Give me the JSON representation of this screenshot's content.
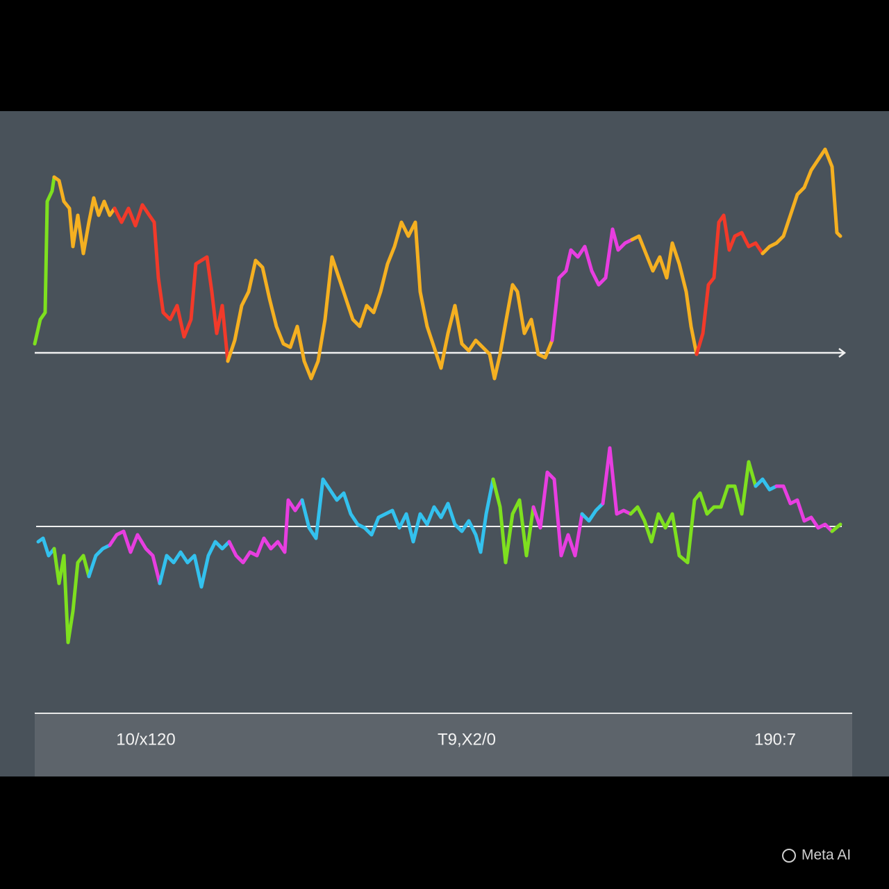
{
  "chart_data": [
    {
      "type": "line",
      "xlim": [
        0,
        1160
      ],
      "ylim": [
        -52,
        308
      ],
      "series": [
        {
          "color": "#7ee01f",
          "x": [
            0,
            8,
            15,
            18,
            25,
            28
          ],
          "values": [
            13,
            48,
            58,
            218,
            233,
            253
          ]
        },
        {
          "color": "#f5b021",
          "x": [
            28,
            35,
            42,
            50,
            55,
            62,
            70,
            78,
            85,
            92,
            100,
            108,
            115
          ],
          "values": [
            253,
            248,
            218,
            208,
            153,
            198,
            143,
            188,
            223,
            198,
            218,
            198,
            208
          ]
        },
        {
          "color": "#f23a2a",
          "x": [
            115,
            125,
            135,
            145,
            155,
            165,
            172,
            178,
            185,
            195,
            205,
            215,
            225,
            232,
            240,
            248,
            255,
            262,
            270,
            278
          ],
          "values": [
            208,
            188,
            208,
            183,
            213,
            198,
            188,
            108,
            58,
            48,
            68,
            23,
            48,
            128,
            133,
            138,
            88,
            28,
            68,
            -12
          ]
        },
        {
          "color": "#f5b021",
          "x": [
            278,
            288,
            298,
            308,
            318,
            328,
            338,
            348,
            358,
            368,
            378,
            388,
            398,
            408,
            418,
            428,
            438,
            448,
            458,
            468,
            478,
            488,
            498,
            508,
            518,
            528,
            538,
            548,
            555,
            565,
            575,
            585,
            595,
            605,
            615,
            625,
            635,
            645,
            655,
            662,
            670,
            678,
            688,
            695,
            705,
            715,
            725,
            735,
            745
          ],
          "values": [
            -12,
            18,
            68,
            88,
            133,
            123,
            78,
            38,
            13,
            8,
            38,
            -12,
            -37,
            -12,
            48,
            138,
            108,
            78,
            48,
            38,
            68,
            58,
            88,
            128,
            153,
            188,
            168,
            188,
            88,
            38,
            8,
            -22,
            28,
            68,
            13,
            3,
            18,
            8,
            -2,
            -37,
            -2,
            43,
            98,
            88,
            28,
            48,
            -2,
            -7,
            18
          ]
        },
        {
          "color": "#e83ee0",
          "x": [
            745,
            755,
            765,
            772,
            782,
            792,
            802,
            812,
            822,
            832,
            840,
            850,
            860
          ],
          "values": [
            18,
            108,
            118,
            148,
            138,
            153,
            118,
            98,
            108,
            178,
            148,
            158,
            163
          ]
        },
        {
          "color": "#f5b021",
          "x": [
            860,
            870,
            880,
            890,
            900,
            910,
            918,
            928,
            938,
            945,
            953
          ],
          "values": [
            163,
            168,
            143,
            118,
            138,
            108,
            158,
            128,
            88,
            38,
            -2
          ]
        },
        {
          "color": "#f23a2a",
          "x": [
            953,
            962,
            970,
            978,
            985,
            992,
            1000,
            1008,
            1018,
            1028,
            1038,
            1048
          ],
          "values": [
            -2,
            28,
            98,
            108,
            188,
            198,
            148,
            168,
            173,
            153,
            158,
            143
          ]
        },
        {
          "color": "#f5b021",
          "x": [
            1048,
            1058,
            1068,
            1078,
            1088,
            1098,
            1108,
            1118,
            1128,
            1138,
            1148,
            1155,
            1160
          ],
          "values": [
            143,
            153,
            158,
            168,
            198,
            228,
            238,
            263,
            278,
            293,
            268,
            173,
            168
          ]
        }
      ]
    },
    {
      "type": "line",
      "xlim": [
        0,
        1160
      ],
      "ylim": [
        -182,
        128
      ],
      "series": [
        {
          "color": "#33c1ee",
          "x": [
            5,
            12,
            20,
            28
          ],
          "values": [
            -22,
            -17,
            -42,
            -32
          ]
        },
        {
          "color": "#7ee01f",
          "x": [
            28,
            35,
            42,
            48,
            55,
            62,
            70,
            78
          ],
          "values": [
            -32,
            -82,
            -42,
            -167,
            -122,
            -52,
            -42,
            -72
          ]
        },
        {
          "color": "#33c1ee",
          "x": [
            78,
            88,
            98,
            108
          ],
          "values": [
            -72,
            -42,
            -32,
            -27
          ]
        },
        {
          "color": "#e83ee0",
          "x": [
            108,
            118,
            128,
            138,
            148,
            160,
            170,
            180
          ],
          "values": [
            -27,
            -12,
            -7,
            -37,
            -12,
            -32,
            -42,
            -82
          ]
        },
        {
          "color": "#33c1ee",
          "x": [
            180,
            190,
            200,
            210,
            220,
            230,
            240,
            250,
            260,
            270,
            280
          ],
          "values": [
            -82,
            -42,
            -52,
            -37,
            -52,
            -42,
            -87,
            -42,
            -22,
            -32,
            -22
          ]
        },
        {
          "color": "#e83ee0",
          "x": [
            280,
            290,
            300,
            310,
            320,
            330,
            340,
            350,
            360,
            365,
            375,
            385
          ],
          "values": [
            -22,
            -42,
            -52,
            -37,
            -42,
            -17,
            -32,
            -22,
            -37,
            38,
            23,
            38
          ]
        },
        {
          "color": "#33c1ee",
          "x": [
            385,
            395,
            405,
            415,
            425,
            435,
            445,
            455,
            465,
            475,
            485,
            495,
            505,
            515,
            525,
            535,
            545,
            555,
            565,
            575,
            585,
            595,
            605,
            615,
            625,
            635,
            642,
            650,
            660
          ],
          "values": [
            38,
            -2,
            -17,
            68,
            53,
            38,
            48,
            18,
            3,
            -2,
            -12,
            13,
            18,
            23,
            -2,
            18,
            -22,
            18,
            3,
            28,
            13,
            33,
            3,
            -7,
            8,
            -12,
            -37,
            18,
            68
          ]
        },
        {
          "color": "#7ee01f",
          "x": [
            660,
            670,
            678,
            688,
            698,
            708,
            718
          ],
          "values": [
            68,
            28,
            -52,
            18,
            38,
            -42,
            28
          ]
        },
        {
          "color": "#e83ee0",
          "x": [
            718,
            728,
            738,
            748,
            758,
            768,
            778,
            788
          ],
          "values": [
            28,
            -2,
            78,
            68,
            -42,
            -12,
            -42,
            18
          ]
        },
        {
          "color": "#33c1ee",
          "x": [
            788,
            798,
            808,
            818
          ],
          "values": [
            18,
            8,
            23,
            33
          ]
        },
        {
          "color": "#e83ee0",
          "x": [
            818,
            828,
            838,
            848,
            858
          ],
          "values": [
            33,
            113,
            18,
            23,
            18
          ]
        },
        {
          "color": "#7ee01f",
          "x": [
            858,
            868,
            878,
            888,
            898,
            908,
            918,
            928,
            940,
            950,
            958,
            968,
            978,
            988,
            998,
            1008,
            1018,
            1028,
            1038
          ],
          "values": [
            18,
            28,
            8,
            -22,
            18,
            -2,
            18,
            -42,
            -52,
            38,
            48,
            18,
            28,
            28,
            58,
            58,
            18,
            93,
            58
          ]
        },
        {
          "color": "#33c1ee",
          "x": [
            1038,
            1048,
            1058,
            1068
          ],
          "values": [
            58,
            68,
            53,
            58
          ]
        },
        {
          "color": "#e83ee0",
          "x": [
            1068,
            1078,
            1088,
            1098,
            1108,
            1118,
            1128,
            1138,
            1148
          ],
          "values": [
            58,
            58,
            33,
            38,
            8,
            13,
            -2,
            3,
            -7
          ]
        },
        {
          "color": "#7ee01f",
          "x": [
            1148,
            1160
          ],
          "values": [
            -7,
            3
          ]
        }
      ]
    }
  ],
  "footer": {
    "labels": [
      "10/x120",
      "T9,X2/0",
      "190:7"
    ]
  },
  "watermark": "Meta AI"
}
